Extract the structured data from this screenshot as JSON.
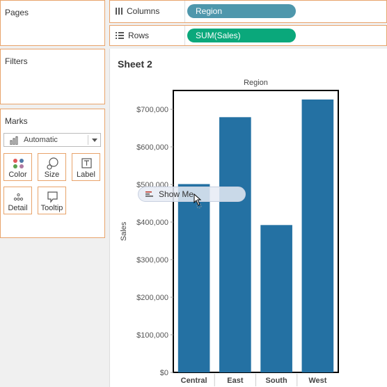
{
  "pages_panel": {
    "title": "Pages"
  },
  "filters_panel": {
    "title": "Filters"
  },
  "marks_panel": {
    "title": "Marks",
    "mark_type": "Automatic",
    "cards": [
      {
        "label": "Color",
        "icon": "color-dots-icon"
      },
      {
        "label": "Size",
        "icon": "size-icon"
      },
      {
        "label": "Label",
        "icon": "label-icon"
      },
      {
        "label": "Detail",
        "icon": "detail-dots-icon"
      },
      {
        "label": "Tooltip",
        "icon": "tooltip-icon"
      }
    ]
  },
  "columns_shelf": {
    "label": "Columns",
    "pill": "Region",
    "pill_color": "#4e97ac"
  },
  "rows_shelf": {
    "label": "Rows",
    "pill": "SUM(Sales)",
    "pill_color": "#0aa87b"
  },
  "sheet": {
    "title": "Sheet 2"
  },
  "drag_tooltip": {
    "label": "Show Me"
  },
  "chart_data": {
    "type": "bar",
    "title": "Region",
    "ylabel": "Sales",
    "xlabel": "",
    "categories": [
      "Central",
      "East",
      "South",
      "West"
    ],
    "values": [
      501000,
      679000,
      392000,
      726000
    ],
    "ylim": [
      0,
      750000
    ],
    "yticks": [
      0,
      100000,
      200000,
      300000,
      400000,
      500000,
      600000,
      700000
    ],
    "ytick_labels": [
      "$0",
      "$100,000",
      "$200,000",
      "$300,000",
      "$400,000",
      "$500,000",
      "$600,000",
      "$700,000"
    ],
    "bar_color": "#2471a3"
  }
}
